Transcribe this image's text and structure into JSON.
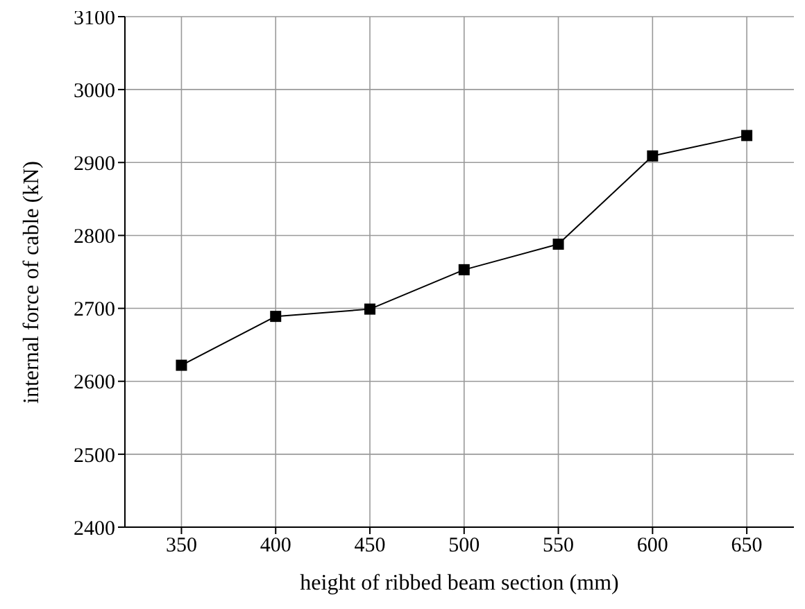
{
  "chart_data": {
    "type": "line",
    "xlabel": "height of ribbed beam section (mm)",
    "ylabel": "internal force of cable (kN)",
    "x": [
      350,
      400,
      450,
      500,
      550,
      600,
      650
    ],
    "series": [
      {
        "color": "#000000",
        "values": [
          2622,
          2689,
          2699,
          2753,
          2788,
          2909,
          2937
        ]
      }
    ],
    "xlim": [
      320,
      675
    ],
    "xticks": [
      350,
      400,
      450,
      500,
      550,
      600,
      650
    ],
    "ylim": [
      2400,
      3100
    ],
    "yticks": [
      2400,
      2500,
      2600,
      2700,
      2800,
      2900,
      3000,
      3100
    ],
    "grid": true,
    "marker": "square",
    "line_style": "solid",
    "legend": false
  }
}
